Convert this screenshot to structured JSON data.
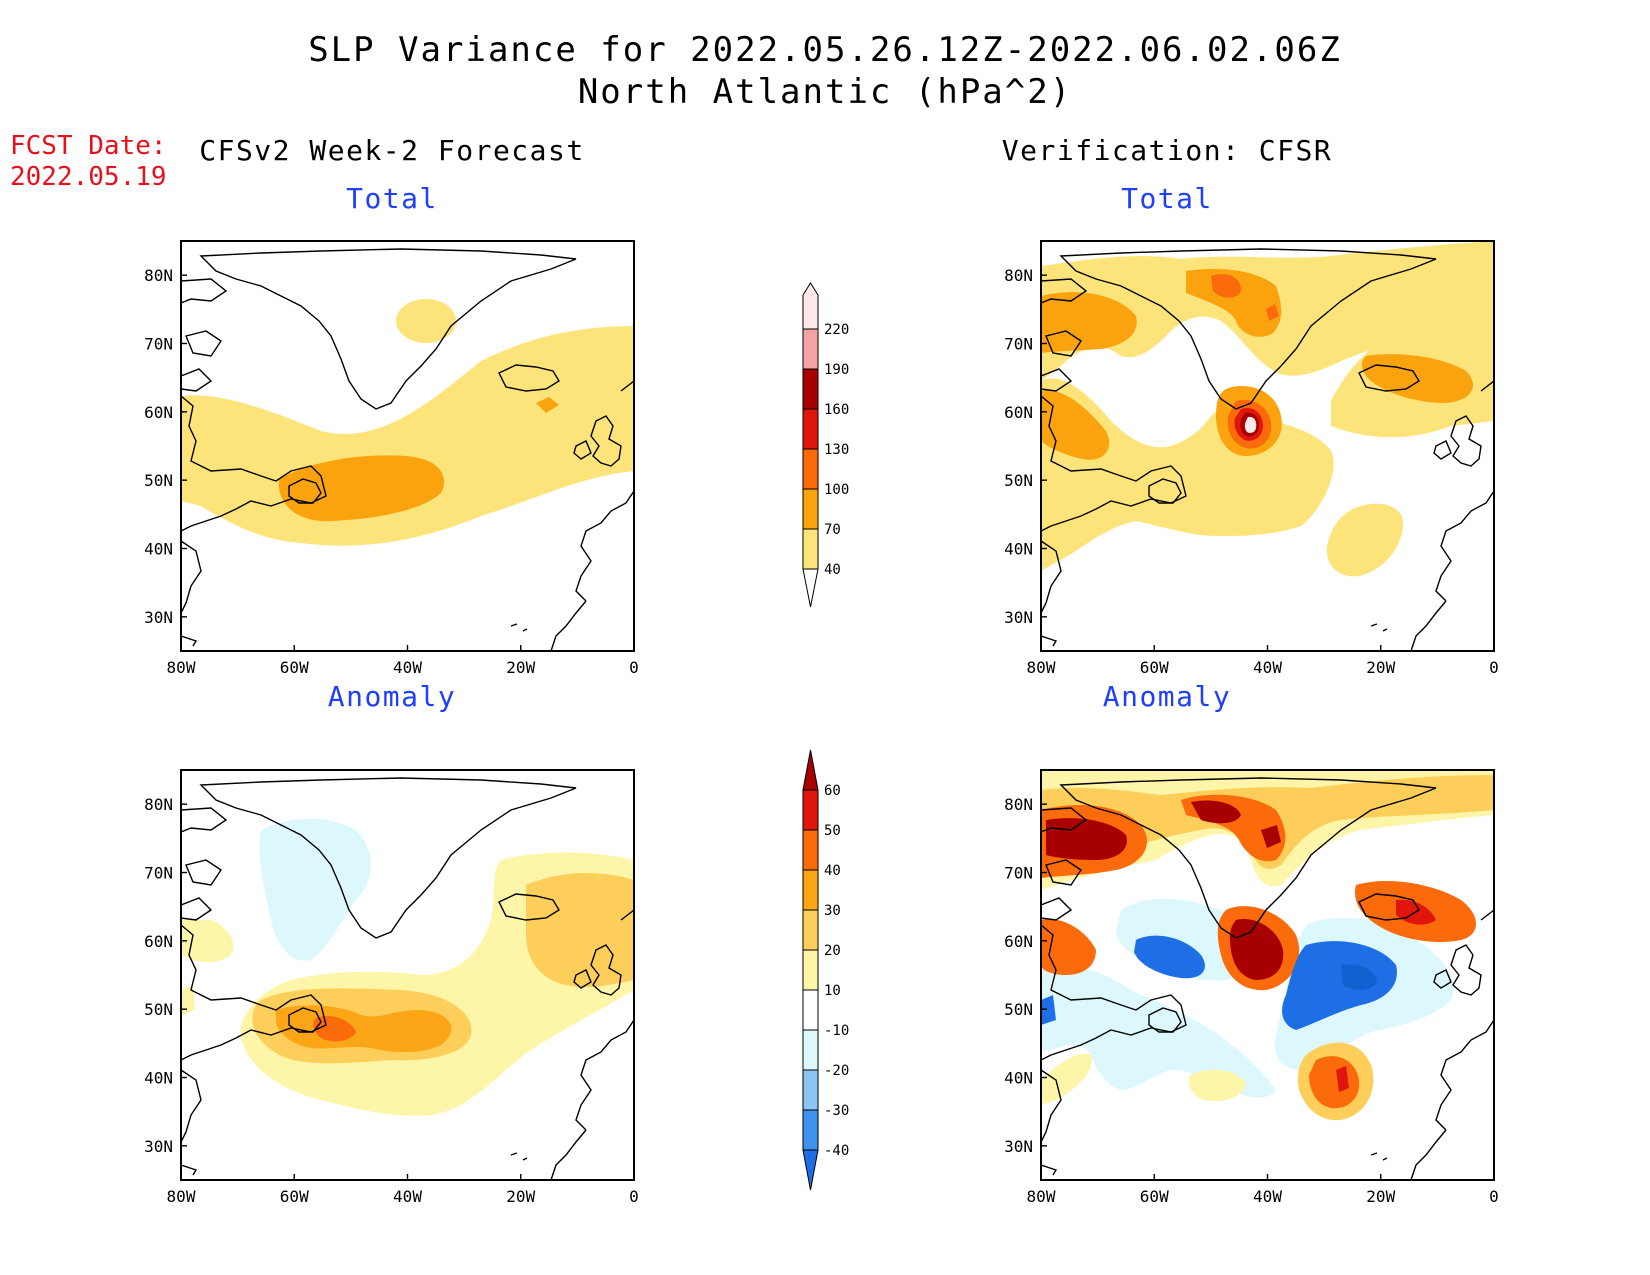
{
  "title": {
    "line1": "SLP Variance for 2022.05.26.12Z-2022.06.02.06Z",
    "line2": "North Atlantic (hPa^2)"
  },
  "fcst_date": {
    "label": "FCST Date:",
    "value": "2022.05.19"
  },
  "columns": {
    "left": "CFSv2 Week-2 Forecast",
    "right": "Verification: CFSR"
  },
  "panels": {
    "forecast_total": "Total",
    "verification_total": "Total",
    "forecast_anomaly": "Anomaly",
    "verification_anomaly": "Anomaly"
  },
  "axes": {
    "lon_labels": [
      "80W",
      "60W",
      "40W",
      "20W",
      "0"
    ],
    "lat_labels": [
      "80N",
      "70N",
      "60N",
      "50N",
      "40N",
      "30N"
    ]
  },
  "colorbars": {
    "total": {
      "levels": [
        "40",
        "70",
        "100",
        "130",
        "160",
        "190",
        "220"
      ],
      "colors": [
        "#fde47a",
        "#fba30f",
        "#fb6a0b",
        "#e0160d",
        "#a80000",
        "#f4a3a4",
        "#fde9e9"
      ]
    },
    "anomaly": {
      "levels": [
        "-40",
        "-30",
        "-20",
        "-10",
        "10",
        "20",
        "30",
        "40",
        "50",
        "60"
      ],
      "colors": [
        "#1e6fe6",
        "#3f92f0",
        "#8cc6f5",
        "#dcf8fc",
        "#ffffff",
        "#fdf5a8",
        "#fdcf5a",
        "#fca517",
        "#fb6a0b",
        "#e0160d",
        "#a80000"
      ]
    }
  },
  "map_data": {
    "region": "North Atlantic",
    "extent": {
      "lon": [
        -80,
        0
      ],
      "lat": [
        25,
        85
      ]
    },
    "fields": {
      "forecast_total": {
        "features": [
          {
            "level": "40-70",
            "area": "broad band from Canadian Maritimes across mid-Atlantic to British Isles and Iceland"
          },
          {
            "level": "40-70",
            "area": "small patch over central Greenland near 72N 38W"
          },
          {
            "level": "70-100",
            "area": "south of Newfoundland, ~45-52N 60-35W"
          },
          {
            "level": "70-100",
            "area": "small spot near 60N 15W"
          }
        ]
      },
      "verification_total": {
        "features": [
          {
            "level": "40-70",
            "area": "widespread over North Atlantic with gaps over Labrador Sea and Greenland interior"
          },
          {
            "level": "70-100",
            "area": "Baffin Bay, Hudson Bay, east Greenland, north of Iceland"
          },
          {
            "level": "100-220",
            "area": "peak near 55N 40W (south of Greenland)"
          },
          {
            "level": "40-70",
            "area": "isolated patch near 40N 25W"
          }
        ]
      },
      "forecast_anomaly": {
        "features": [
          {
            "level": "-10 to -20",
            "area": "over western Greenland / Labrador Sea"
          },
          {
            "level": "10-20",
            "area": "large area across mid-Atlantic to British Isles"
          },
          {
            "level": "20-30",
            "area": "south of Newfoundland and west of British Isles"
          },
          {
            "level": "30-40",
            "area": "near 48N 55W"
          }
        ]
      },
      "verification_anomaly": {
        "features": [
          {
            "level": "40-60+",
            "area": "Baffin Bay and northern Greenland"
          },
          {
            "level": "40-60+",
            "area": "near 55N 40W"
          },
          {
            "level": "-30 to -40",
            "area": "Labrador Sea near 57N 55W"
          },
          {
            "level": "-30 to -40",
            "area": "central Atlantic near 50N 25W"
          },
          {
            "level": "30-50",
            "area": "near 40N 20W"
          },
          {
            "level": "30-50",
            "area": "Iceland region"
          }
        ]
      }
    }
  }
}
